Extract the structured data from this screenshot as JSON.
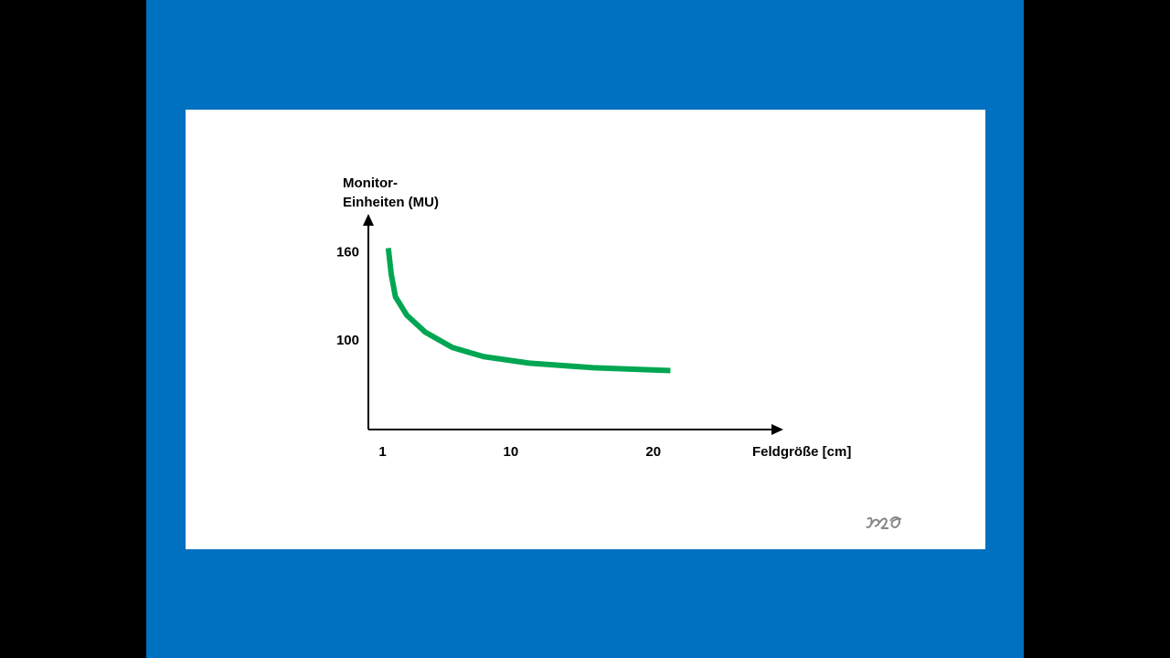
{
  "chart_data": {
    "type": "line",
    "xlabel": "Feldgröße [cm]",
    "ylabel": "Monitor-\nEinheiten (MU)",
    "x": [
      1.4,
      1.6,
      1.9,
      2.7,
      4.0,
      5.9,
      8.1,
      11.3,
      15.8,
      21.2
    ],
    "values": [
      163,
      145.6,
      130,
      117.5,
      106,
      95.6,
      89.4,
      85,
      81.9,
      80
    ],
    "color": "#00a651",
    "xlim": [
      0,
      29
    ],
    "xticks": [
      1,
      10,
      20
    ],
    "ylim": [
      40,
      185
    ],
    "yticks": [
      100,
      160
    ],
    "grid": false
  }
}
